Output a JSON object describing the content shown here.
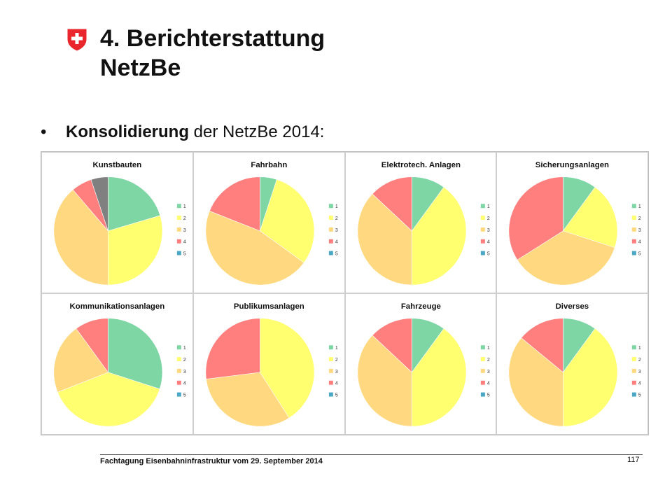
{
  "slide": {
    "title_line1": "4. Berichterstattung",
    "title_line2": "NetzBe",
    "bullet_bold": "Konsolidierung",
    "bullet_rest": " der NetzBe 2014:",
    "footer": "Fachtagung Eisenbahninfrastruktur vom 29. September 2014",
    "page_number": "117"
  },
  "colors": {
    "1": "#7fd6a5",
    "2": "#ffff70",
    "3": "#ffd87f",
    "4": "#ff7f7f",
    "5": "#808080",
    "5_legend": "#4aa8c4",
    "logo_red": "#e8262b"
  },
  "chart_data": [
    {
      "type": "pie",
      "title": "Kunstbauten",
      "legend": [
        "1",
        "2",
        "3",
        "4",
        "5"
      ],
      "legend_position": "right",
      "values": [
        20,
        29,
        38,
        6,
        5
      ]
    },
    {
      "type": "pie",
      "title": "Fahrbahn",
      "legend": [
        "1",
        "2",
        "3",
        "4",
        "5"
      ],
      "legend_position": "right",
      "values": [
        5,
        30,
        46,
        19,
        0
      ]
    },
    {
      "type": "pie",
      "title": "Elektrotech. Anlagen",
      "legend": [
        "1",
        "2",
        "3",
        "4",
        "5"
      ],
      "legend_position": "right",
      "values": [
        10,
        40,
        37,
        13,
        0
      ]
    },
    {
      "type": "pie",
      "title": "Sicherungsanlagen",
      "legend": [
        "1",
        "2",
        "3",
        "4",
        "5"
      ],
      "legend_position": "right",
      "values": [
        10,
        20,
        36,
        34,
        0
      ]
    },
    {
      "type": "pie",
      "title": "Kommunikationsanlagen",
      "legend": [
        "1",
        "2",
        "3",
        "4",
        "5"
      ],
      "legend_position": "right",
      "values": [
        30,
        39,
        21,
        10,
        0
      ]
    },
    {
      "type": "pie",
      "title": "Publikumsanlagen",
      "legend": [
        "1",
        "2",
        "3",
        "4",
        "5"
      ],
      "legend_position": "right",
      "values": [
        0,
        41,
        32,
        27,
        0
      ]
    },
    {
      "type": "pie",
      "title": "Fahrzeuge",
      "legend": [
        "1",
        "2",
        "3",
        "4",
        "5"
      ],
      "legend_position": "right",
      "values": [
        10,
        40,
        37,
        13,
        0
      ]
    },
    {
      "type": "pie",
      "title": "Diverses",
      "legend": [
        "1",
        "2",
        "3",
        "4",
        "5"
      ],
      "legend_position": "right",
      "values": [
        10,
        40,
        36,
        14,
        0
      ]
    }
  ]
}
